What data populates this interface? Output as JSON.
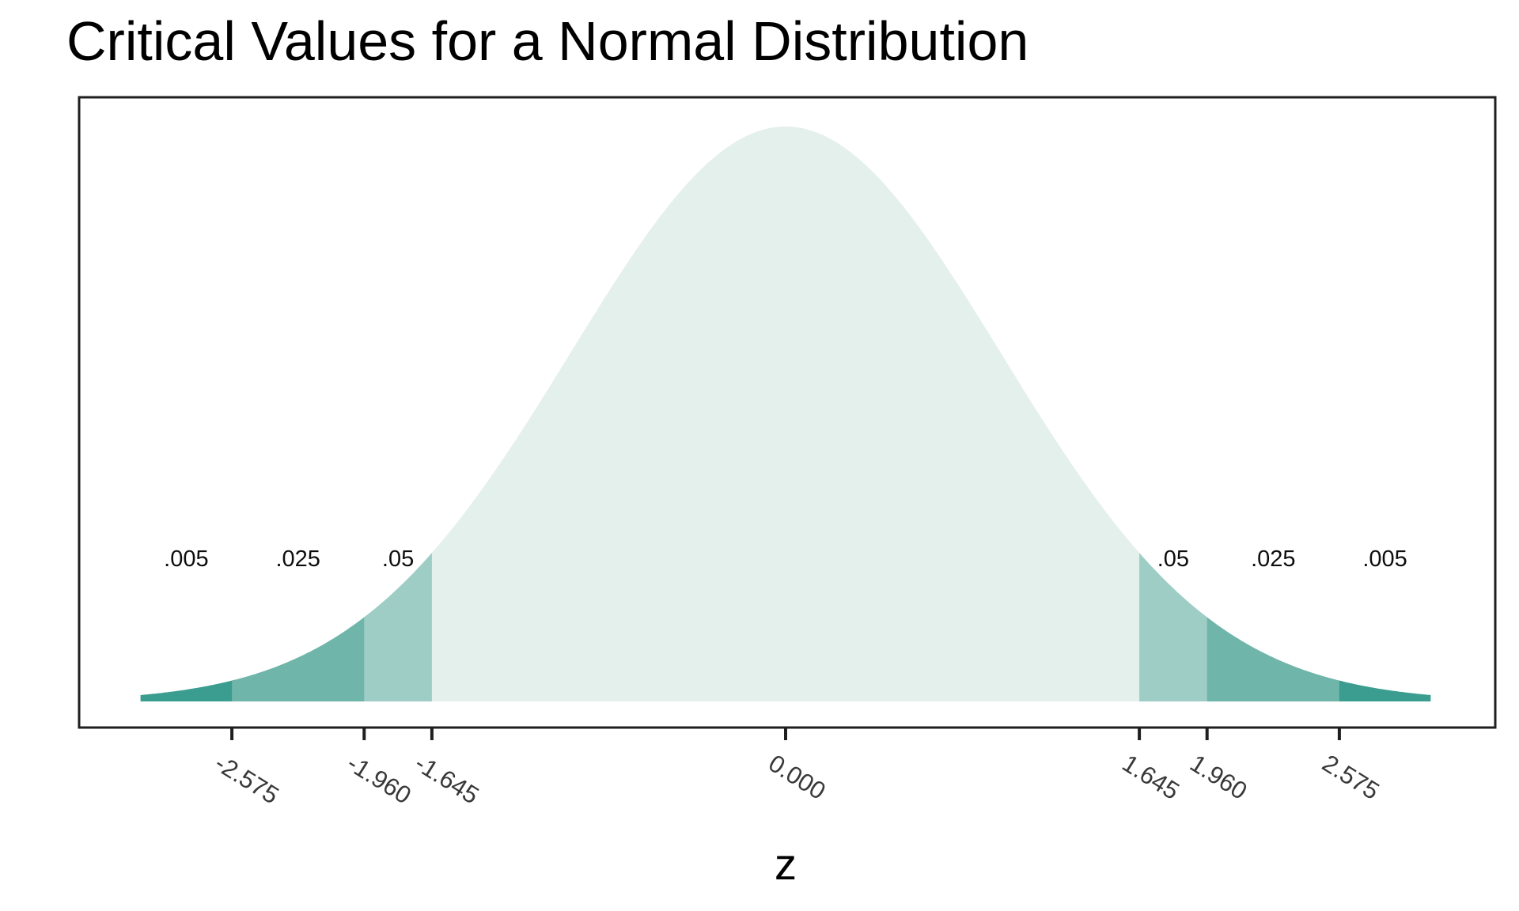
{
  "title": "Critical Values for a Normal Distribution",
  "colors": {
    "background": "#ffffff",
    "panel_border": "#1f1f1f",
    "axis_tick": "#1f1f1f",
    "tick_label": "#383838",
    "annotation": "#0d0d0d",
    "axis_title": "#000000",
    "tail_005": "#3a9d8f",
    "tail_025": "#6fb5a9",
    "tail_05": "#9ecdc6",
    "body_fill": "#e4f0ec"
  },
  "chart_data": {
    "type": "area",
    "title": "Critical Values for a Normal Distribution",
    "curve": "standard normal density",
    "mean": 0,
    "sd": 1,
    "x_range": [
      -3,
      3
    ],
    "xlabel": "z",
    "ylabel": "",
    "ylim": [
      0,
      0.42
    ],
    "grid": false,
    "legend": false,
    "x_ticks": [
      -2.575,
      -1.96,
      -1.645,
      0,
      1.645,
      1.96,
      2.575
    ],
    "x_tick_labels": [
      "-2.575",
      "-1.960",
      "-1.645",
      "0.000",
      "1.645",
      "1.960",
      "2.575"
    ],
    "tick_label_angle_deg": 32,
    "segments": [
      {
        "from": -3.0,
        "to": -2.575,
        "tail_prob": ".005",
        "color": "#3a9d8f"
      },
      {
        "from": -2.575,
        "to": -1.96,
        "tail_prob": ".025",
        "color": "#6fb5a9"
      },
      {
        "from": -1.96,
        "to": -1.645,
        "tail_prob": ".05",
        "color": "#9ecdc6"
      },
      {
        "from": -1.645,
        "to": 1.645,
        "tail_prob": null,
        "color": "#e4f0ec"
      },
      {
        "from": 1.645,
        "to": 1.96,
        "tail_prob": ".05",
        "color": "#9ecdc6"
      },
      {
        "from": 1.96,
        "to": 2.575,
        "tail_prob": ".025",
        "color": "#6fb5a9"
      },
      {
        "from": 2.575,
        "to": 3.0,
        "tail_prob": ".005",
        "color": "#3a9d8f"
      }
    ],
    "annotations": [
      {
        "text": ".005",
        "z": -2.7875
      },
      {
        "text": ".025",
        "z": -2.2675
      },
      {
        "text": ".05",
        "z": -1.8025
      },
      {
        "text": ".05",
        "z": 1.8025
      },
      {
        "text": ".025",
        "z": 2.2675
      },
      {
        "text": ".005",
        "z": 2.7875
      }
    ]
  }
}
